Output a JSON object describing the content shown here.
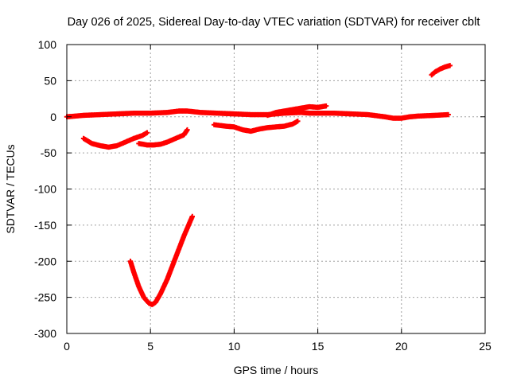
{
  "chart_data": {
    "type": "scatter",
    "title": "Day 026 of 2025, Sidereal Day-to-day VTEC variation (SDTVAR) for receiver cblt",
    "xlabel": "GPS time / hours",
    "ylabel": "SDTVAR / TECUs",
    "xlim": [
      0,
      25
    ],
    "ylim": [
      -300,
      100
    ],
    "xticks": [
      0,
      5,
      10,
      15,
      20,
      25
    ],
    "yticks": [
      100,
      50,
      0,
      -50,
      -100,
      -150,
      -200,
      -250,
      -300
    ],
    "xtick_labels": [
      "0",
      "5",
      "10",
      "15",
      "20",
      "25"
    ],
    "ytick_labels": [
      "100",
      "50",
      "0",
      "-50",
      "-100",
      "-150",
      "-200",
      "-250",
      "-300"
    ],
    "grid": true,
    "marker": "cross",
    "color": "#ff0000",
    "series": [
      {
        "segments": [
          {
            "x": [
              0.0,
              1.0,
              2.0,
              3.0,
              4.0,
              5.0,
              6.0,
              6.7,
              7.2,
              8.0,
              9.0,
              10.0,
              11.0,
              12.0,
              13.0,
              14.0,
              14.5,
              15.0,
              15.5,
              16.0,
              17.0,
              18.0,
              19.0,
              19.5,
              20.0,
              20.5,
              21.0,
              22.0,
              22.8
            ],
            "y": [
              0,
              2,
              3,
              4,
              5,
              5,
              6,
              8,
              8,
              6,
              5,
              4,
              3,
              3,
              5,
              6,
              5,
              5,
              5,
              5,
              4,
              3,
              0,
              -2,
              -2,
              0,
              1,
              2,
              3
            ]
          },
          {
            "x": [
              1.0,
              1.5,
              2.0,
              2.5,
              3.0,
              3.5,
              4.0,
              4.5,
              4.8
            ],
            "y": [
              -30,
              -37,
              -40,
              -42,
              -40,
              -35,
              -30,
              -26,
              -22
            ]
          },
          {
            "x": [
              4.3,
              4.8,
              5.2,
              5.6,
              6.0,
              6.5,
              7.0,
              7.2
            ],
            "y": [
              -37,
              -39,
              -39,
              -38,
              -35,
              -30,
              -25,
              -18
            ]
          },
          {
            "x": [
              3.8,
              4.0,
              4.3,
              4.6,
              4.9,
              5.1,
              5.3,
              5.6,
              6.0,
              6.5,
              7.0,
              7.5
            ],
            "y": [
              -200,
              -215,
              -235,
              -250,
              -258,
              -260,
              -257,
              -245,
              -225,
              -195,
              -165,
              -138
            ]
          },
          {
            "x": [
              8.8,
              9.5,
              10.0,
              10.5,
              11.0,
              11.5,
              12.0,
              12.5,
              13.0,
              13.5,
              13.8
            ],
            "y": [
              -11,
              -13,
              -14,
              -18,
              -20,
              -17,
              -15,
              -14,
              -13,
              -10,
              -6
            ]
          },
          {
            "x": [
              12.0,
              12.5,
              13.0,
              13.5,
              14.0,
              14.5,
              15.0,
              15.5
            ],
            "y": [
              2,
              6,
              8,
              10,
              12,
              14,
              13,
              15
            ]
          },
          {
            "x": [
              21.8,
              22.0,
              22.3,
              22.6,
              22.9
            ],
            "y": [
              58,
              62,
              66,
              69,
              71
            ]
          }
        ]
      }
    ]
  }
}
